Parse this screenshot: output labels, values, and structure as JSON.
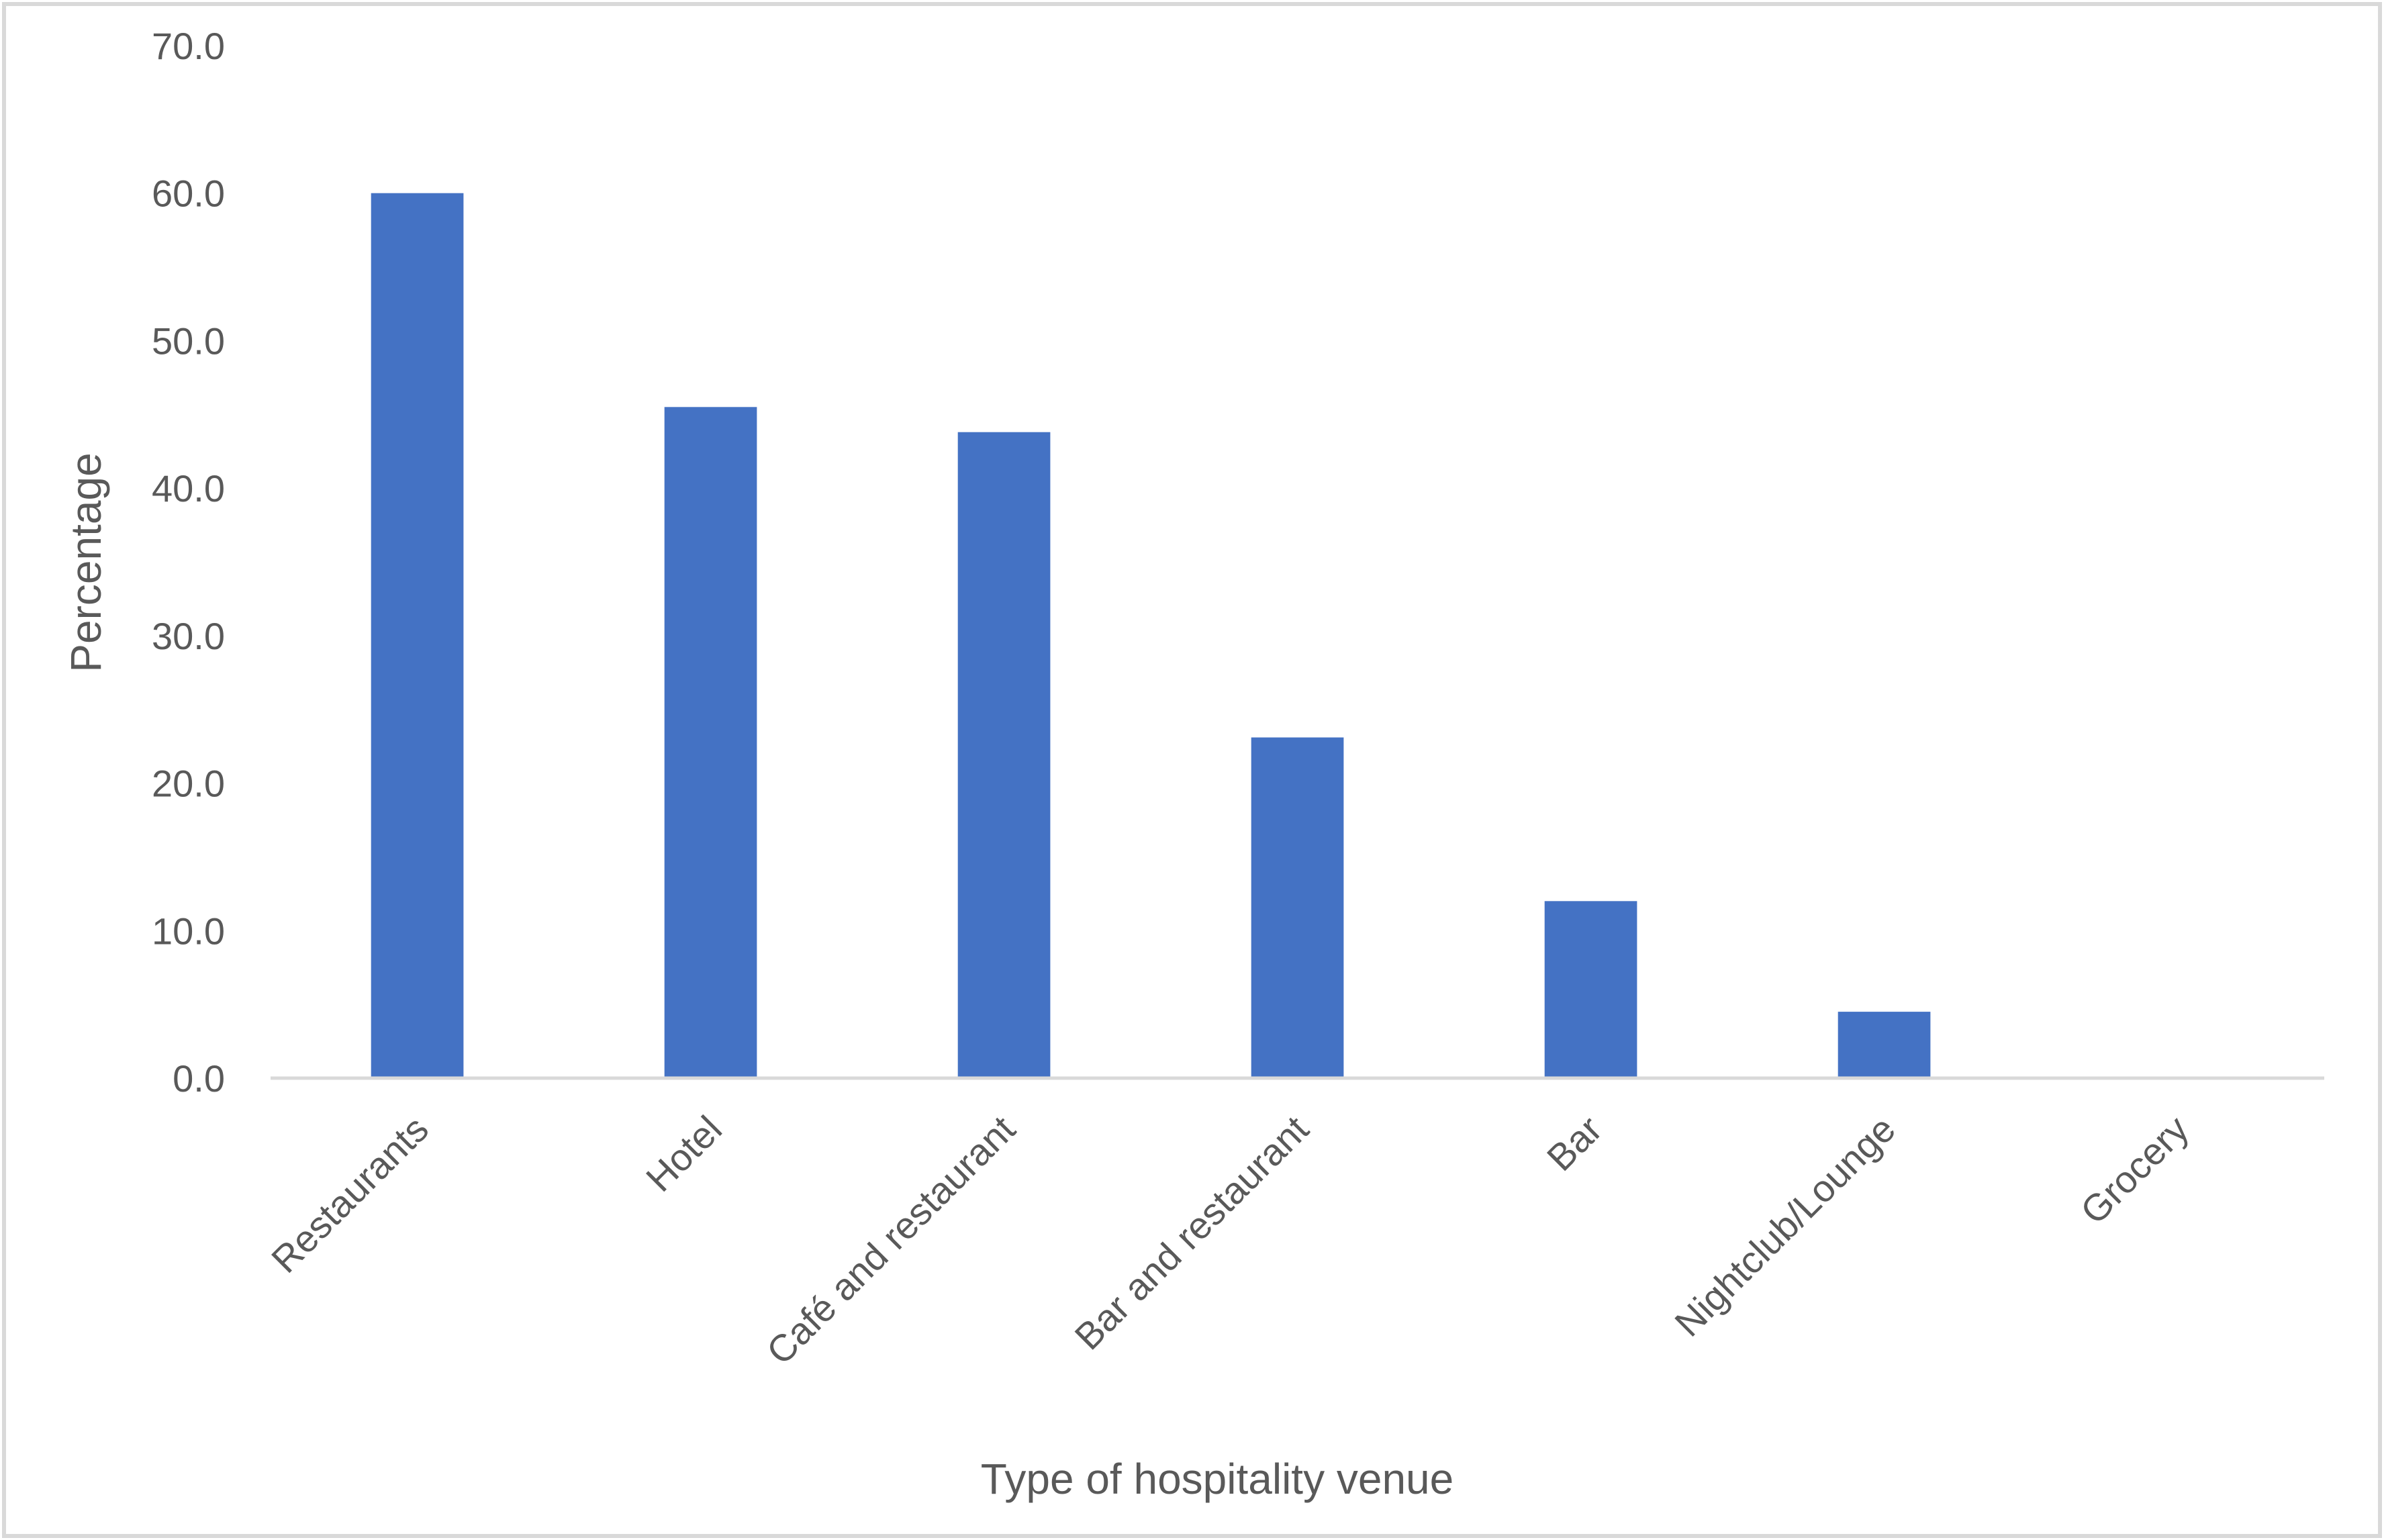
{
  "chart_data": {
    "type": "bar",
    "title": "",
    "xlabel": "Type of hospitality venue",
    "ylabel": "Percentage",
    "categories": [
      "Restaurants",
      "Hotel",
      "Café and restaurant",
      "Bar and restaurant",
      "Bar",
      "Nightclub/Lounge",
      "Grocery"
    ],
    "values": [
      60.0,
      45.5,
      43.8,
      23.1,
      12.0,
      4.5,
      0.0
    ],
    "ylim": [
      0,
      70
    ],
    "yticks": [
      "0.0",
      "10.0",
      "20.0",
      "30.0",
      "40.0",
      "50.0",
      "60.0",
      "70.0"
    ],
    "grid": false,
    "legend": "none",
    "colors": {
      "bar": "#4472C4",
      "axis": "#D9D9D9",
      "text": "#595959",
      "frame": "#D9D9D9"
    }
  }
}
